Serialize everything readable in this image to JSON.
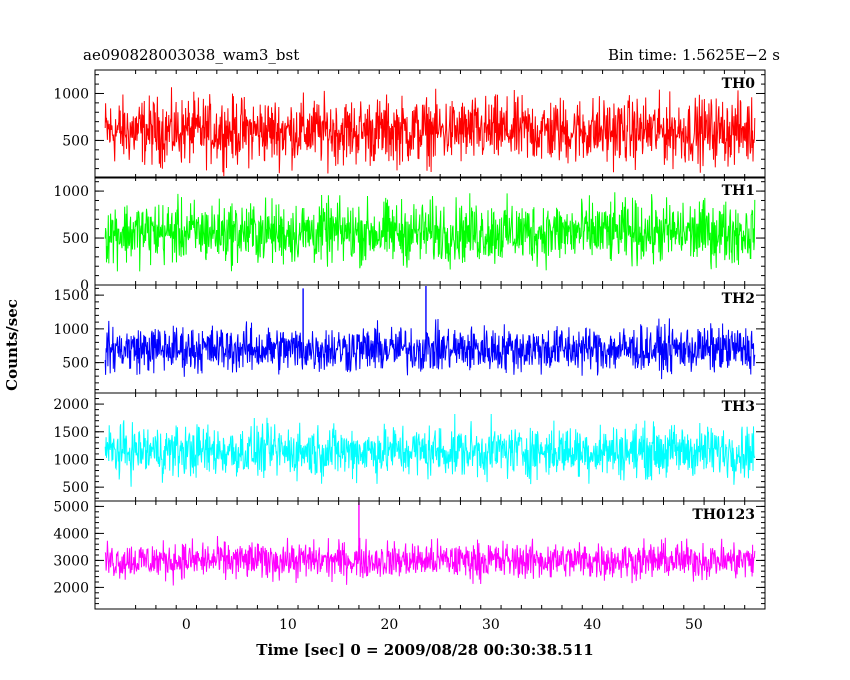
{
  "header": {
    "title": "ae090828003038_wam3_bst",
    "bin_time": "Bin time: 1.5625E−2 s"
  },
  "axes": {
    "xlabel": "Time [sec] 0 = 2009/08/28 00:30:38.511",
    "ylabel": "Counts/sec"
  },
  "colors": {
    "TH0": "#ff0000",
    "TH1": "#00ff00",
    "TH2": "#0000ff",
    "TH3": "#00ffff",
    "TH0123": "#ff00ff"
  },
  "chart_data": {
    "type": "line",
    "xlim": [
      -9,
      57
    ],
    "xticks": [
      0,
      10,
      20,
      30,
      40,
      50
    ],
    "x_range": [
      -8,
      56
    ],
    "bin_time": 0.015625,
    "grid": false,
    "legend": "none",
    "panels": [
      {
        "name": "TH0",
        "ylim": [
          100,
          1250
        ],
        "yticks": [
          500,
          1000
        ],
        "baseline": 600,
        "noise": 360,
        "min": 120,
        "max": 1250,
        "spikes": []
      },
      {
        "name": "TH1",
        "ylim": [
          0,
          1150
        ],
        "yticks": [
          0,
          500,
          1000
        ],
        "baseline": 560,
        "noise": 340,
        "min": 20,
        "max": 1150,
        "spikes": []
      },
      {
        "name": "TH2",
        "ylim": [
          50,
          1650
        ],
        "yticks": [
          500,
          1000,
          1500
        ],
        "baseline": 700,
        "noise": 350,
        "min": 60,
        "max": 1650,
        "spikes": [
          {
            "t": 23.6,
            "v": 1640
          },
          {
            "t": 11.5,
            "v": 1600
          }
        ]
      },
      {
        "name": "TH3",
        "ylim": [
          250,
          2200
        ],
        "yticks": [
          500,
          1000,
          1500,
          2000
        ],
        "baseline": 1150,
        "noise": 480,
        "min": 280,
        "max": 2200,
        "spikes": []
      },
      {
        "name": "TH0123",
        "ylim": [
          1200,
          5200
        ],
        "yticks": [
          2000,
          3000,
          4000,
          5000
        ],
        "baseline": 3000,
        "noise": 700,
        "min": 1250,
        "max": 5200,
        "spikes": [
          {
            "t": 17.0,
            "v": 5150
          }
        ]
      }
    ]
  }
}
